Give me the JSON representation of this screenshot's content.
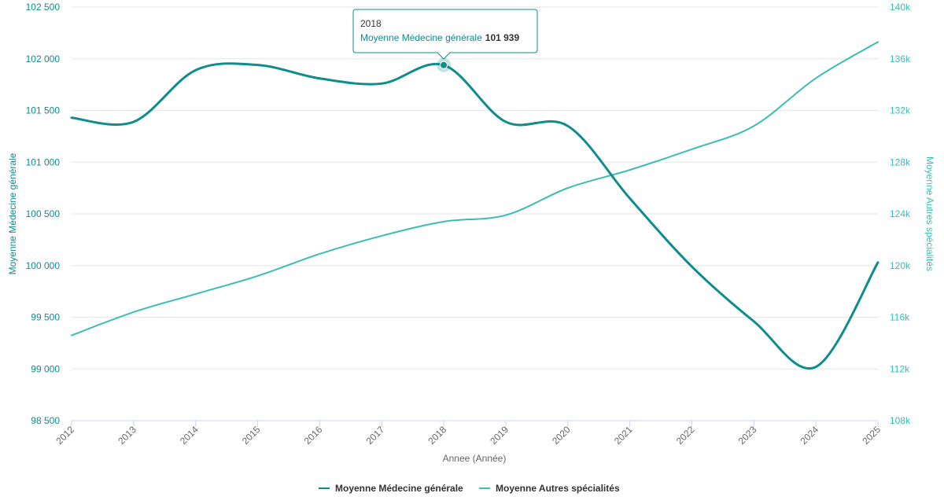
{
  "chart_data": {
    "type": "line",
    "x": [
      "2012",
      "2013",
      "2014",
      "2015",
      "2016",
      "2017",
      "2018",
      "2019",
      "2020",
      "2021",
      "2022",
      "2023",
      "2024",
      "2025"
    ],
    "xlabel": "Annee (Année)",
    "y_left": {
      "label": "Moyenne Médecine générale",
      "range": [
        98500,
        102500
      ],
      "ticks": [
        "98 500",
        "99 000",
        "99 500",
        "100 000",
        "100 500",
        "101 000",
        "101 500",
        "102 000",
        "102 500"
      ],
      "tick_values": [
        98500,
        99000,
        99500,
        100000,
        100500,
        101000,
        101500,
        102000,
        102500
      ]
    },
    "y_right": {
      "label": "Moyenne Autres spécialités",
      "range": [
        108000,
        140000
      ],
      "ticks": [
        "108k",
        "112k",
        "116k",
        "120k",
        "124k",
        "128k",
        "132k",
        "136k",
        "140k"
      ],
      "tick_values": [
        108000,
        112000,
        116000,
        120000,
        124000,
        128000,
        132000,
        136000,
        140000
      ]
    },
    "series": [
      {
        "name": "Moyenne Médecine générale",
        "axis": "left",
        "color": "#0f8c8c",
        "values": [
          101430,
          101390,
          101890,
          101940,
          101810,
          101760,
          101939,
          101390,
          101350,
          100650,
          99990,
          99460,
          99020,
          100030
        ]
      },
      {
        "name": "Moyenne Autres spécialités",
        "axis": "right",
        "color": "#3cbdb1",
        "values": [
          114600,
          116400,
          117800,
          119200,
          120900,
          122300,
          123400,
          123900,
          126000,
          127400,
          129000,
          130800,
          134500,
          137300
        ]
      }
    ],
    "grid": true,
    "legend": "bottom-center",
    "tooltip": {
      "title": "2018",
      "series_label": "Moyenne Médecine générale",
      "value": "101 939",
      "index": 6
    }
  }
}
